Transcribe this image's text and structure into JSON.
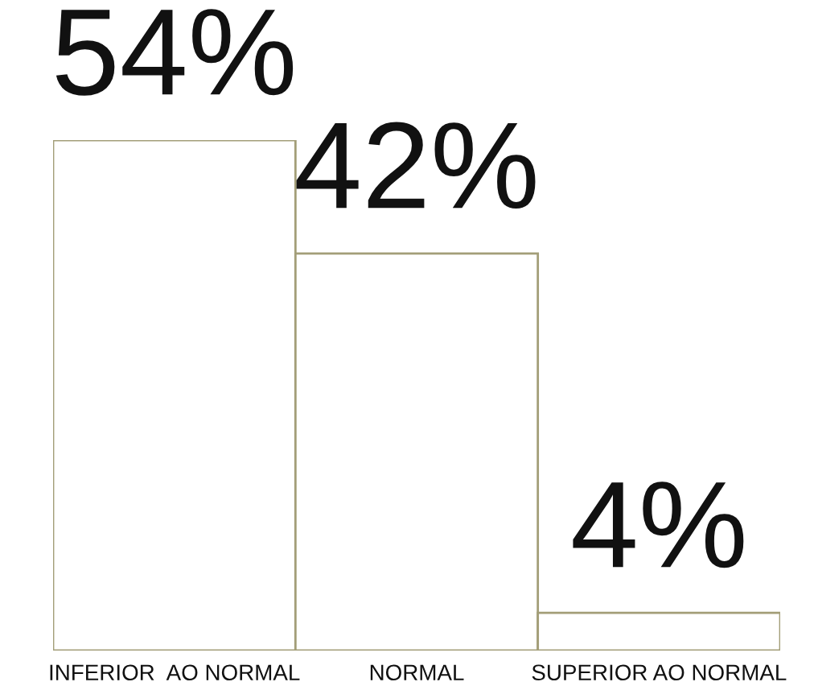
{
  "chart_data": {
    "type": "bar",
    "categories": [
      "INFERIOR  AO NORMAL",
      "NORMAL",
      "SUPERIOR AO NORMAL"
    ],
    "values": [
      54,
      42,
      4
    ],
    "value_labels": [
      "54%",
      "42%",
      "4%"
    ],
    "color": "#a39e78",
    "tick_labels": "x",
    "grid": false,
    "legend": false
  }
}
